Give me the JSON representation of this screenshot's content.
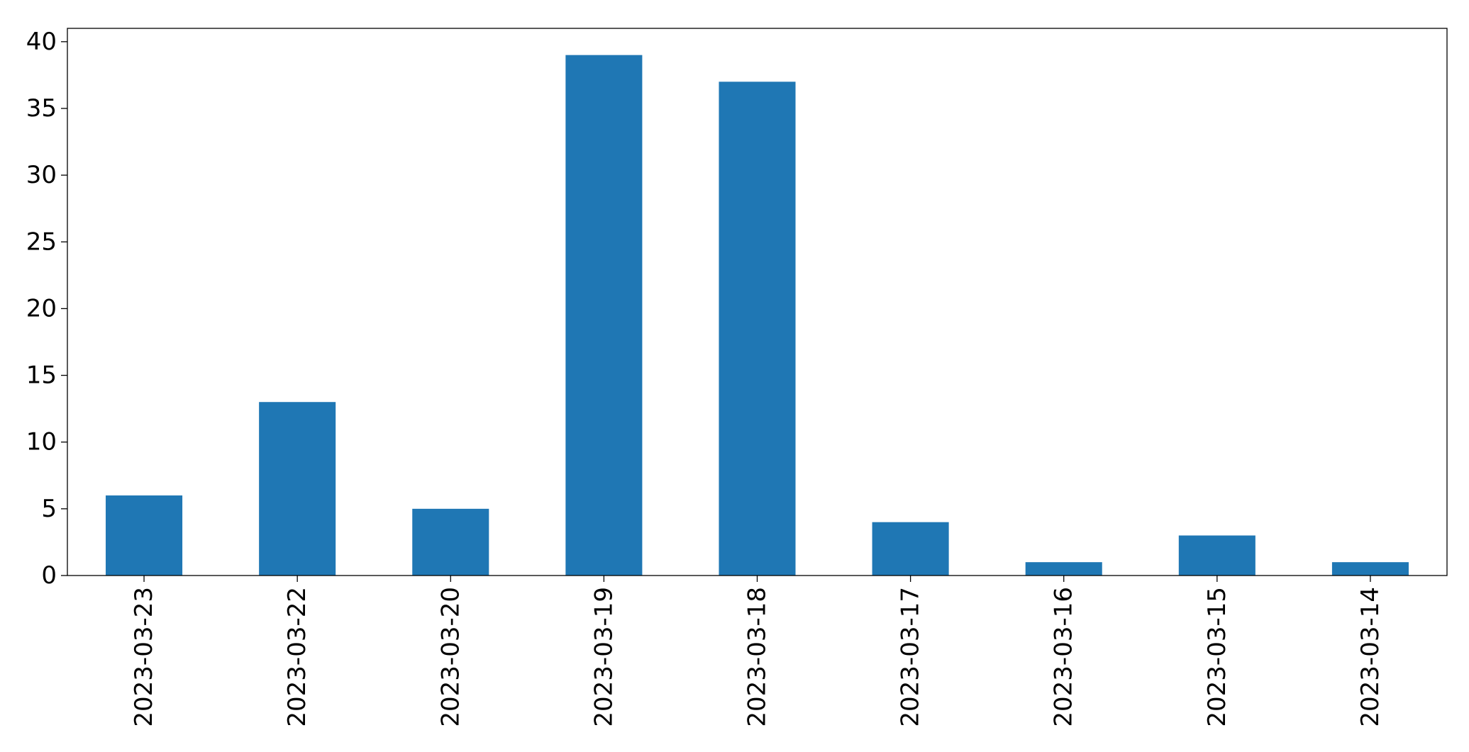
{
  "chart_data": {
    "type": "bar",
    "title": "",
    "xlabel": "",
    "ylabel": "",
    "categories": [
      "2023-03-23",
      "2023-03-22",
      "2023-03-20",
      "2023-03-19",
      "2023-03-18",
      "2023-03-17",
      "2023-03-16",
      "2023-03-15",
      "2023-03-14"
    ],
    "values": [
      6,
      13,
      5,
      39,
      37,
      4,
      1,
      3,
      1
    ],
    "ylim": [
      0,
      41
    ],
    "yticks": [
      0,
      5,
      10,
      15,
      20,
      25,
      30,
      35,
      40
    ],
    "grid": false,
    "legend": "none",
    "bar_color": "#1f77b4"
  }
}
